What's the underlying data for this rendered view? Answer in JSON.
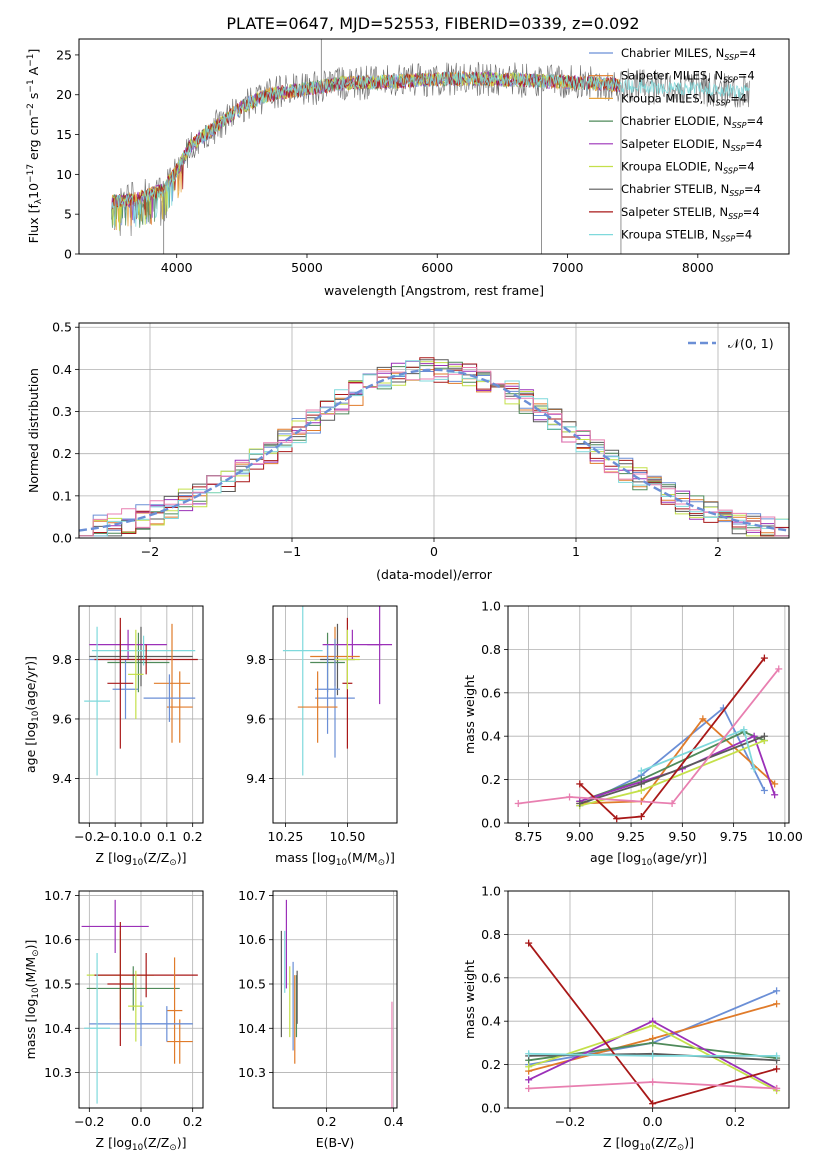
{
  "figure": {
    "title": "PLATE=0647, MJD=52553, FIBERID=0339, z=0.092"
  },
  "models": [
    {
      "name": "Chabrier MILES",
      "color": "#6b8fd6"
    },
    {
      "name": "Salpeter MILES",
      "color": "#e07b2a"
    },
    {
      "name": "Kroupa MILES",
      "color": "#e8a33c"
    },
    {
      "name": "Chabrier ELODIE",
      "color": "#4f8a5a"
    },
    {
      "name": "Salpeter ELODIE",
      "color": "#9b30b8"
    },
    {
      "name": "Kroupa ELODIE",
      "color": "#c4e04a"
    },
    {
      "name": "Chabrier STELIB",
      "color": "#5a5a5a"
    },
    {
      "name": "Salpeter STELIB",
      "color": "#a81818"
    },
    {
      "name": "Kroupa STELIB",
      "color": "#7fd9dc"
    }
  ],
  "legend_suffix_nssp": "N",
  "legend_suffix_sub": "SSP",
  "legend_suffix_val": "=4",
  "chart_data": [
    {
      "id": "spectrum",
      "type": "line",
      "xlabel": "wavelength [Angstrom, rest frame]",
      "ylabel": "Flux [f",
      "ylabel_full": [
        "Flux [f",
        "λ",
        "10",
        "−17",
        " erg cm",
        "−2",
        " s",
        "−1",
        " A",
        "−1",
        "]"
      ],
      "xlim": [
        3250,
        8700
      ],
      "ylim": [
        0,
        27
      ],
      "xticks": [
        4000,
        5000,
        6000,
        7000,
        8000
      ],
      "yticks": [
        0,
        5,
        10,
        15,
        20,
        25
      ],
      "legend": "top-right",
      "continuum": {
        "x": [
          3500,
          3700,
          3900,
          4000,
          4100,
          4300,
          4500,
          4700,
          4900,
          5100,
          5300,
          5500,
          5800,
          6100,
          6400,
          6700,
          7000,
          7300,
          7600,
          7900,
          8200,
          8400
        ],
        "y": [
          6.5,
          7.0,
          8.0,
          10.5,
          13.5,
          16.0,
          18.5,
          20.0,
          20.5,
          21.0,
          21.5,
          21.5,
          21.8,
          22.0,
          22.0,
          21.8,
          21.6,
          21.3,
          21.0,
          20.8,
          20.6,
          20.4
        ]
      },
      "spikes": [
        {
          "x": 5110,
          "y": 27
        },
        {
          "x": 6800,
          "y": 0
        },
        {
          "x": 7410,
          "y": 0
        },
        {
          "x": 3900,
          "y": 0
        }
      ]
    },
    {
      "id": "residuals",
      "type": "line",
      "xlabel": "(data-model)/error",
      "ylabel": "Normed distribution",
      "xlim": [
        -2.5,
        2.5
      ],
      "ylim": [
        0,
        0.51
      ],
      "xticks": [
        -2,
        -1,
        0,
        1,
        2
      ],
      "yticks": [
        0.0,
        0.1,
        0.2,
        0.3,
        0.4,
        0.5
      ],
      "legend": "top-right",
      "gaussian_label": "𝒩(0, 1)",
      "gaussian_color": "#6b8fd6",
      "grid": true
    },
    {
      "id": "z-age",
      "type": "scatter",
      "xlabel": "Z [log",
      "xlabel_parts": [
        "Z [log",
        "10",
        "(Z/Z",
        "⊙",
        ")]"
      ],
      "ylabel_parts": [
        "age  [log",
        "10",
        "(age/yr)]"
      ],
      "xlim": [
        -0.24,
        0.24
      ],
      "ylim": [
        9.25,
        9.98
      ],
      "xticks": [
        -0.2,
        -0.1,
        0.0,
        0.1,
        0.2
      ],
      "yticks": [
        9.4,
        9.6,
        9.8
      ],
      "grid": true,
      "points": [
        {
          "x": -0.01,
          "xerr": 0.12,
          "y": 9.79,
          "yerr": 0.1,
          "model": 3
        },
        {
          "x": -0.08,
          "xerr": 0.12,
          "y": 9.8,
          "yerr": 0.1,
          "model": 0
        },
        {
          "x": -0.06,
          "xerr": 0.05,
          "y": 9.7,
          "yerr": 0.1,
          "model": 0
        },
        {
          "x": 0.0,
          "xerr": 0.2,
          "y": 9.81,
          "yerr": 0.1,
          "model": 6
        },
        {
          "x": -0.05,
          "xerr": 0.15,
          "y": 9.85,
          "yerr": 0.05,
          "model": 4
        },
        {
          "x": 0.01,
          "xerr": 0.2,
          "y": 9.83,
          "yerr": 0.05,
          "model": 8
        },
        {
          "x": 0.02,
          "xerr": 0.2,
          "y": 9.8,
          "yerr": 0.05,
          "model": 7
        },
        {
          "x": -0.08,
          "xerr": 0.05,
          "y": 9.72,
          "yerr": 0.22,
          "model": 7
        },
        {
          "x": 0.15,
          "xerr": 0.05,
          "y": 9.64,
          "yerr": 0.12,
          "model": 1
        },
        {
          "x": 0.12,
          "xerr": 0.07,
          "y": 9.72,
          "yerr": 0.2,
          "model": 1
        },
        {
          "x": 0.11,
          "xerr": 0.1,
          "y": 9.67,
          "yerr": 0.08,
          "model": 0
        },
        {
          "x": -0.17,
          "xerr": 0.05,
          "y": 9.66,
          "yerr": 0.25,
          "model": 8
        },
        {
          "x": -0.02,
          "xerr": 0.03,
          "y": 9.75,
          "yerr": 0.15,
          "model": 5
        }
      ]
    },
    {
      "id": "mass-age",
      "type": "scatter",
      "xlabel_parts": [
        "mass [log",
        "10",
        "(M/M",
        "⊙",
        ")]"
      ],
      "xlim": [
        10.2,
        10.7
      ],
      "ylim": [
        9.25,
        9.98
      ],
      "xticks": [
        10.25,
        10.5
      ],
      "yticks": [
        9.4,
        9.6,
        9.8
      ],
      "grid": true,
      "points": [
        {
          "x": 10.32,
          "xerr": 0.08,
          "y": 9.83,
          "yerr": 0.42,
          "model": 8
        },
        {
          "x": 10.46,
          "xerr": 0.07,
          "y": 9.8,
          "yerr": 0.12,
          "model": 6
        },
        {
          "x": 10.42,
          "xerr": 0.07,
          "y": 9.79,
          "yerr": 0.1,
          "model": 3
        },
        {
          "x": 10.52,
          "xerr": 0.12,
          "y": 9.85,
          "yerr": 0.05,
          "model": 4
        },
        {
          "x": 10.45,
          "xerr": 0.1,
          "y": 9.81,
          "yerr": 0.1,
          "model": 1
        },
        {
          "x": 10.45,
          "xerr": 0.08,
          "y": 9.67,
          "yerr": 0.2,
          "model": 0
        },
        {
          "x": 10.42,
          "xerr": 0.05,
          "y": 9.7,
          "yerr": 0.15,
          "model": 0
        },
        {
          "x": 10.5,
          "xerr": 0.02,
          "y": 9.72,
          "yerr": 0.22,
          "model": 7
        },
        {
          "x": 10.5,
          "xerr": 0.05,
          "y": 9.8,
          "yerr": 0.1,
          "model": 5
        },
        {
          "x": 10.38,
          "xerr": 0.08,
          "y": 9.64,
          "yerr": 0.12,
          "model": 1
        },
        {
          "x": 10.63,
          "xerr": 0.05,
          "y": 9.85,
          "yerr": 0.2,
          "model": 4
        }
      ]
    },
    {
      "id": "age-weight",
      "type": "line",
      "xlabel_parts": [
        "age  [log",
        "10",
        "(age/yr)]"
      ],
      "ylabel": "mass weight",
      "xlim": [
        8.65,
        10.02
      ],
      "ylim": [
        0,
        1
      ],
      "xticks": [
        8.75,
        9.0,
        9.25,
        9.5,
        9.75,
        10.0
      ],
      "yticks": [
        0.0,
        0.2,
        0.4,
        0.6,
        0.8,
        1.0
      ],
      "grid": true,
      "series": [
        {
          "model": 0,
          "x": [
            9.0,
            9.3,
            9.7,
            9.9
          ],
          "y": [
            0.08,
            0.22,
            0.53,
            0.15
          ]
        },
        {
          "model": 1,
          "x": [
            9.0,
            9.3,
            9.6,
            9.95
          ],
          "y": [
            0.09,
            0.1,
            0.48,
            0.18
          ]
        },
        {
          "model": 3,
          "x": [
            9.0,
            9.3,
            9.8,
            9.9
          ],
          "y": [
            0.1,
            0.2,
            0.42,
            0.38
          ]
        },
        {
          "model": 4,
          "x": [
            9.0,
            9.5,
            9.85,
            9.95
          ],
          "y": [
            0.1,
            0.25,
            0.4,
            0.13
          ]
        },
        {
          "model": 5,
          "x": [
            9.0,
            9.3,
            9.9
          ],
          "y": [
            0.08,
            0.15,
            0.38
          ]
        },
        {
          "model": 6,
          "x": [
            9.0,
            9.3,
            9.9
          ],
          "y": [
            0.09,
            0.18,
            0.4
          ]
        },
        {
          "model": 7,
          "x": [
            9.0,
            9.18,
            9.3,
            9.9
          ],
          "y": [
            0.18,
            0.02,
            0.03,
            0.76
          ]
        },
        {
          "model": 8,
          "x": [
            9.3,
            9.8,
            9.85
          ],
          "y": [
            0.24,
            0.43,
            0.25
          ]
        },
        {
          "model": 9,
          "x": [
            8.7,
            8.95,
            9.45,
            9.97
          ],
          "y": [
            0.09,
            0.12,
            0.09,
            0.71
          ]
        }
      ]
    },
    {
      "id": "z-mass",
      "type": "scatter",
      "xlabel_parts": [
        "Z [log",
        "10",
        "(Z/Z",
        "⊙",
        ")]"
      ],
      "ylabel_parts": [
        "mass [log",
        "10",
        "(M/M",
        "⊙",
        ")]"
      ],
      "xlim": [
        -0.24,
        0.24
      ],
      "ylim": [
        10.22,
        10.71
      ],
      "xticks": [
        -0.2,
        0.0,
        0.2
      ],
      "yticks": [
        10.3,
        10.4,
        10.5,
        10.6,
        10.7
      ],
      "grid": true,
      "points": [
        {
          "x": -0.1,
          "xerr": 0.13,
          "y": 10.63,
          "yerr": 0.06,
          "model": 4
        },
        {
          "x": -0.08,
          "xerr": 0.13,
          "y": 10.52,
          "yerr": 0.1,
          "model": 5
        },
        {
          "x": -0.03,
          "xerr": 0.18,
          "y": 10.49,
          "yerr": 0.05,
          "model": 3
        },
        {
          "x": 0.02,
          "xerr": 0.2,
          "y": 10.52,
          "yerr": 0.05,
          "model": 7
        },
        {
          "x": 0.0,
          "xerr": 0.2,
          "y": 10.41,
          "yerr": 0.05,
          "model": 0
        },
        {
          "x": -0.08,
          "xerr": 0.05,
          "y": 10.5,
          "yerr": 0.14,
          "model": 7
        },
        {
          "x": -0.02,
          "xerr": 0.03,
          "y": 10.45,
          "yerr": 0.08,
          "model": 5
        },
        {
          "x": 0.15,
          "xerr": 0.05,
          "y": 10.37,
          "yerr": 0.05,
          "model": 1
        },
        {
          "x": 0.13,
          "xerr": 0.03,
          "y": 10.44,
          "yerr": 0.12,
          "model": 1
        },
        {
          "x": -0.17,
          "xerr": 0.05,
          "y": 10.4,
          "yerr": 0.17,
          "model": 8
        },
        {
          "x": 0.1,
          "xerr": 0.1,
          "y": 10.41,
          "yerr": 0.04,
          "model": 0
        }
      ]
    },
    {
      "id": "ebv-mass",
      "type": "scatter",
      "xlabel": "E(B-V)",
      "xlim": [
        0.04,
        0.41
      ],
      "ylim": [
        10.22,
        10.71
      ],
      "xticks": [
        0.2,
        0.4
      ],
      "yticks": [
        10.3,
        10.4,
        10.5,
        10.6,
        10.7
      ],
      "grid": true,
      "points": [
        {
          "x": 0.065,
          "y": 10.5,
          "yerr": 0.12,
          "model": 6
        },
        {
          "x": 0.075,
          "y": 10.55,
          "yerr": 0.07,
          "model": 8
        },
        {
          "x": 0.08,
          "y": 10.59,
          "yerr": 0.1,
          "model": 4
        },
        {
          "x": 0.09,
          "y": 10.46,
          "yerr": 0.08,
          "model": 5
        },
        {
          "x": 0.1,
          "y": 10.45,
          "yerr": 0.1,
          "model": 0
        },
        {
          "x": 0.105,
          "y": 10.42,
          "yerr": 0.1,
          "model": 1
        },
        {
          "x": 0.11,
          "y": 10.45,
          "yerr": 0.07,
          "model": 3
        },
        {
          "x": 0.112,
          "y": 10.47,
          "yerr": 0.06,
          "model": 6
        },
        {
          "x": 0.395,
          "y": 10.33,
          "yerr": 0.13,
          "model": 9
        }
      ]
    },
    {
      "id": "z-weight",
      "type": "line",
      "xlabel_parts": [
        "Z [log",
        "10",
        "(Z/Z",
        "⊙",
        ")]"
      ],
      "ylabel": "mass weight",
      "xlim": [
        -0.35,
        0.33
      ],
      "ylim": [
        0,
        1
      ],
      "xticks": [
        -0.2,
        0.0,
        0.2
      ],
      "yticks": [
        0.0,
        0.2,
        0.4,
        0.6,
        0.8,
        1.0
      ],
      "grid": true,
      "series": [
        {
          "model": 0,
          "x": [
            -0.3,
            0.0,
            0.3
          ],
          "y": [
            0.2,
            0.3,
            0.54
          ]
        },
        {
          "model": 1,
          "x": [
            -0.3,
            0.0,
            0.3
          ],
          "y": [
            0.17,
            0.32,
            0.48
          ]
        },
        {
          "model": 3,
          "x": [
            -0.3,
            0.0,
            0.3
          ],
          "y": [
            0.22,
            0.3,
            0.23
          ]
        },
        {
          "model": 4,
          "x": [
            -0.3,
            0.0,
            0.3
          ],
          "y": [
            0.13,
            0.4,
            0.09
          ]
        },
        {
          "model": 5,
          "x": [
            -0.3,
            0.0,
            0.3
          ],
          "y": [
            0.19,
            0.38,
            0.08
          ]
        },
        {
          "model": 6,
          "x": [
            -0.3,
            0.0,
            0.3
          ],
          "y": [
            0.24,
            0.25,
            0.22
          ]
        },
        {
          "model": 7,
          "x": [
            -0.3,
            0.0,
            0.3
          ],
          "y": [
            0.76,
            0.02,
            0.18
          ]
        },
        {
          "model": 8,
          "x": [
            -0.3,
            0.0,
            0.3
          ],
          "y": [
            0.25,
            0.24,
            0.24
          ]
        },
        {
          "model": 9,
          "x": [
            -0.3,
            0.0,
            0.3
          ],
          "y": [
            0.09,
            0.12,
            0.09
          ]
        }
      ]
    }
  ]
}
